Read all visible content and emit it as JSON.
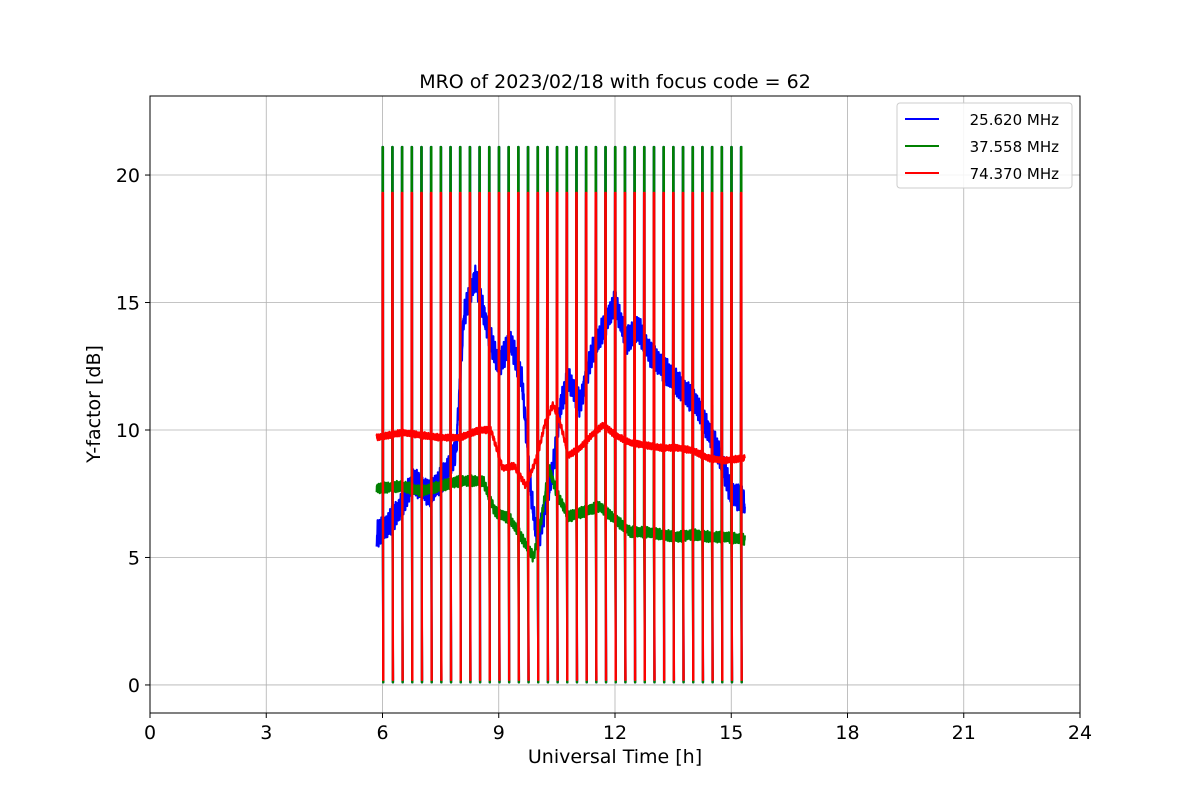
{
  "chart_data": {
    "type": "line",
    "title": "MRO of 2023/02/18 with focus code = 62",
    "xlabel": "Universal Time [h]",
    "ylabel": "Y-factor [dB]",
    "xlim": [
      0,
      24
    ],
    "ylim": [
      -1.1,
      23.1
    ],
    "xticks": [
      0,
      3,
      6,
      9,
      12,
      15,
      18,
      21,
      24
    ],
    "xtick_labels": [
      "0",
      "3",
      "6",
      "9",
      "12",
      "15",
      "18",
      "21",
      "24"
    ],
    "yticks": [
      0,
      5,
      10,
      15,
      20
    ],
    "ytick_labels": [
      "0",
      "5",
      "10",
      "15",
      "20"
    ],
    "grid": true,
    "legend_position": "top-right",
    "calibration": {
      "start": 5.85,
      "end": 15.35,
      "first_spike": 6.0,
      "interval": 0.25,
      "count": 38
    },
    "series": [
      {
        "name": "25.620 MHz",
        "color": "#0000ff",
        "spike_peak": 21.1,
        "spike_floor": 0.1,
        "baseline_amplitude": 0.55,
        "baseline": [
          [
            5.85,
            5.9
          ],
          [
            6.1,
            6.2
          ],
          [
            6.4,
            6.8
          ],
          [
            6.8,
            8.0
          ],
          [
            7.2,
            7.5
          ],
          [
            7.6,
            8.2
          ],
          [
            7.9,
            9.2
          ],
          [
            8.1,
            14.5
          ],
          [
            8.4,
            16.0
          ],
          [
            8.7,
            14.0
          ],
          [
            9.0,
            12.5
          ],
          [
            9.3,
            13.5
          ],
          [
            9.6,
            12.0
          ],
          [
            9.8,
            8.0
          ],
          [
            10.0,
            5.5
          ],
          [
            10.2,
            7.0
          ],
          [
            10.4,
            8.5
          ],
          [
            10.6,
            11.0
          ],
          [
            10.8,
            12.0
          ],
          [
            11.1,
            11.0
          ],
          [
            11.4,
            13.0
          ],
          [
            11.7,
            14.0
          ],
          [
            12.0,
            15.0
          ],
          [
            12.3,
            13.5
          ],
          [
            12.6,
            14.0
          ],
          [
            12.9,
            13.0
          ],
          [
            13.2,
            12.5
          ],
          [
            13.5,
            12.0
          ],
          [
            13.8,
            11.5
          ],
          [
            14.1,
            11.0
          ],
          [
            14.4,
            10.0
          ],
          [
            14.7,
            9.0
          ],
          [
            15.0,
            7.5
          ],
          [
            15.35,
            7.2
          ]
        ]
      },
      {
        "name": "37.558 MHz",
        "color": "#008000",
        "spike_peak": 21.1,
        "spike_floor": 0.1,
        "baseline_amplitude": 0.22,
        "baseline": [
          [
            5.85,
            7.7
          ],
          [
            6.5,
            7.8
          ],
          [
            7.0,
            7.6
          ],
          [
            7.5,
            7.8
          ],
          [
            8.0,
            8.0
          ],
          [
            8.6,
            8.0
          ],
          [
            8.9,
            6.8
          ],
          [
            9.3,
            6.5
          ],
          [
            9.7,
            5.5
          ],
          [
            9.9,
            5.0
          ],
          [
            10.1,
            6.5
          ],
          [
            10.3,
            8.5
          ],
          [
            10.5,
            7.5
          ],
          [
            10.8,
            6.6
          ],
          [
            11.2,
            6.8
          ],
          [
            11.6,
            7.0
          ],
          [
            12.0,
            6.5
          ],
          [
            12.4,
            6.0
          ],
          [
            12.8,
            6.0
          ],
          [
            13.2,
            5.9
          ],
          [
            13.6,
            5.8
          ],
          [
            14.0,
            5.9
          ],
          [
            14.5,
            5.8
          ],
          [
            14.9,
            5.8
          ],
          [
            15.35,
            5.7
          ]
        ]
      },
      {
        "name": "74.370 MHz",
        "color": "#ff0000",
        "spike_peak": 19.3,
        "spike_floor": 0.2,
        "baseline_amplitude": 0.13,
        "baseline": [
          [
            5.85,
            9.7
          ],
          [
            6.5,
            9.9
          ],
          [
            7.0,
            9.8
          ],
          [
            7.5,
            9.7
          ],
          [
            8.0,
            9.7
          ],
          [
            8.5,
            10.0
          ],
          [
            8.8,
            10.0
          ],
          [
            9.1,
            8.5
          ],
          [
            9.4,
            8.6
          ],
          [
            9.7,
            7.8
          ],
          [
            10.0,
            9.0
          ],
          [
            10.2,
            10.3
          ],
          [
            10.4,
            11.0
          ],
          [
            10.6,
            10.2
          ],
          [
            10.8,
            9.0
          ],
          [
            11.1,
            9.3
          ],
          [
            11.4,
            9.8
          ],
          [
            11.7,
            10.2
          ],
          [
            12.0,
            9.8
          ],
          [
            12.4,
            9.5
          ],
          [
            12.8,
            9.4
          ],
          [
            13.2,
            9.3
          ],
          [
            13.6,
            9.3
          ],
          [
            14.0,
            9.2
          ],
          [
            14.4,
            8.9
          ],
          [
            14.8,
            8.8
          ],
          [
            15.35,
            8.9
          ]
        ]
      }
    ]
  }
}
